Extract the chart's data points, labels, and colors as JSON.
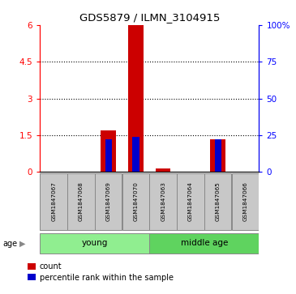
{
  "title": "GDS5879 / ILMN_3104915",
  "samples": [
    "GSM1847067",
    "GSM1847068",
    "GSM1847069",
    "GSM1847070",
    "GSM1847063",
    "GSM1847064",
    "GSM1847065",
    "GSM1847066"
  ],
  "count_values": [
    0,
    0,
    1.7,
    6.0,
    0.15,
    0,
    1.35,
    0
  ],
  "percentile_values": [
    0,
    0,
    22,
    24,
    0,
    0,
    22,
    0
  ],
  "groups_def": [
    {
      "label": "young",
      "start": 0,
      "end": 4,
      "color": "#90EE90"
    },
    {
      "label": "middle age",
      "start": 4,
      "end": 8,
      "color": "#5FD35F"
    }
  ],
  "group_label": "age",
  "ylim_left": [
    0,
    6
  ],
  "ylim_right": [
    0,
    100
  ],
  "yticks_left": [
    0,
    1.5,
    3.0,
    4.5,
    6.0
  ],
  "ytick_labels_left": [
    "0",
    "1.5",
    "3",
    "4.5",
    "6"
  ],
  "yticks_right": [
    0,
    25,
    50,
    75,
    100
  ],
  "ytick_labels_right": [
    "0",
    "25",
    "50",
    "75",
    "100%"
  ],
  "count_color": "#CC0000",
  "percentile_color": "#0000CC",
  "label_count": "count",
  "label_percentile": "percentile rank within the sample",
  "sample_box_color": "#C8C8C8"
}
